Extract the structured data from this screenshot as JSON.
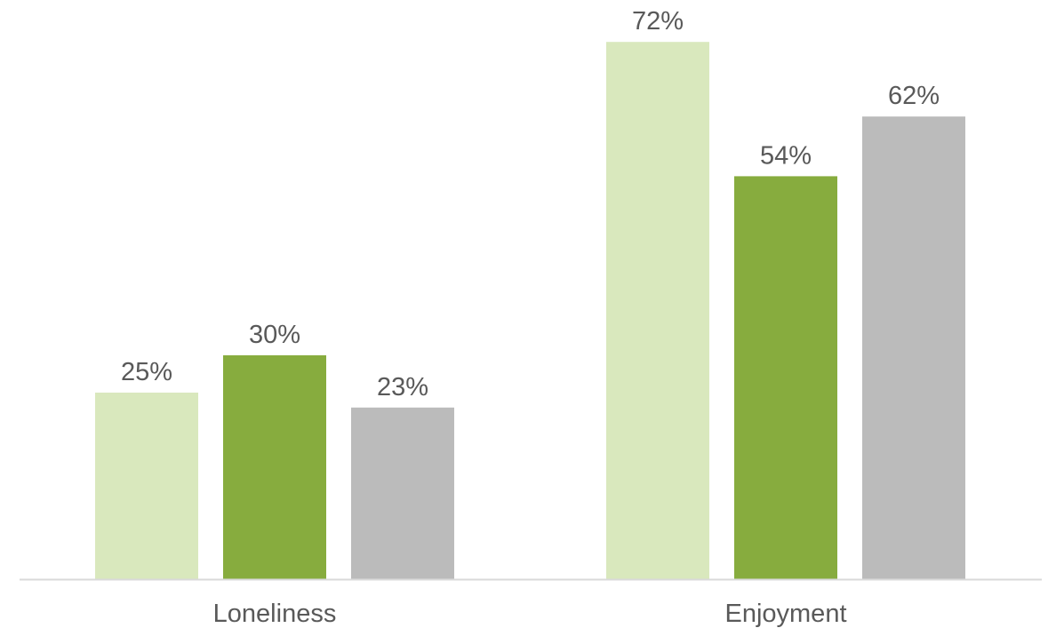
{
  "chart_data": {
    "type": "bar",
    "categories": [
      "Loneliness",
      "Enjoyment"
    ],
    "series": [
      {
        "values": [
          25,
          72
        ],
        "color": "#d9e8bd"
      },
      {
        "values": [
          30,
          54
        ],
        "color": "#87ac3e"
      },
      {
        "values": [
          23,
          62
        ],
        "color": "#bbbbbb"
      }
    ],
    "value_suffix": "%",
    "ylim": [
      0,
      75
    ],
    "grid": false,
    "legend": "none",
    "axis_color": "#d9d9d9"
  }
}
